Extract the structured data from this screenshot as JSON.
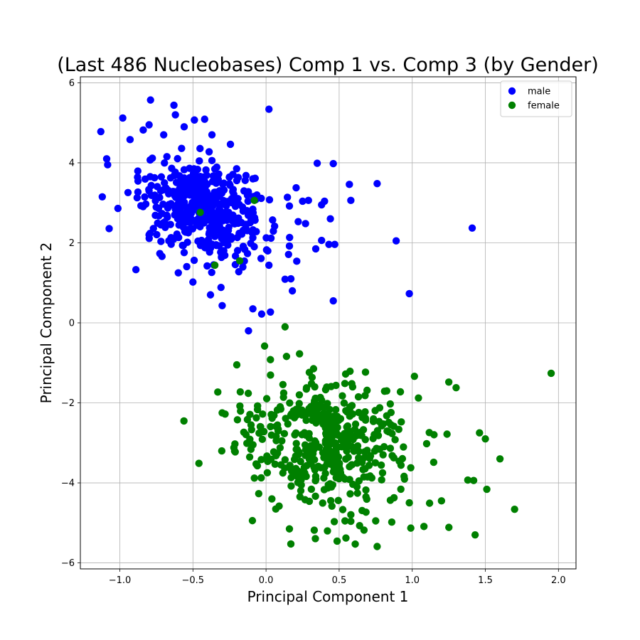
{
  "chart_data": {
    "type": "scatter",
    "title": "(Last 486 Nucleobases) Comp 1 vs. Comp 3 (by Gender)",
    "xlabel": "Principal Component 1",
    "ylabel": "Principal Component 2",
    "xlim": [
      -1.27,
      2.12
    ],
    "ylim": [
      -6.15,
      6.15
    ],
    "xticks": [
      -1.0,
      -0.5,
      0.0,
      0.5,
      1.0,
      1.5,
      2.0
    ],
    "xtick_labels": [
      "−1.0",
      "−0.5",
      "0.0",
      "0.5",
      "1.0",
      "1.5",
      "2.0"
    ],
    "yticks": [
      -6,
      -4,
      -2,
      0,
      2,
      4,
      6
    ],
    "ytick_labels": [
      "−6",
      "−4",
      "−2",
      "0",
      "2",
      "4",
      "6"
    ],
    "grid": true,
    "legend_position": "top-right",
    "series": [
      {
        "name": "male",
        "color": "#0000ff",
        "generated_count": 440,
        "cluster": {
          "center": [
            -0.42,
            2.85
          ],
          "spread": [
            0.22,
            0.62
          ]
        },
        "points": [
          [
            -1.13,
            4.78
          ],
          [
            -0.98,
            5.12
          ],
          [
            -0.79,
            5.57
          ],
          [
            -0.63,
            5.44
          ],
          [
            -0.62,
            5.2
          ],
          [
            -0.42,
            5.09
          ],
          [
            -0.49,
            5.07
          ],
          [
            0.02,
            5.34
          ],
          [
            -1.09,
            4.1
          ],
          [
            -0.93,
            4.58
          ],
          [
            -0.84,
            4.82
          ],
          [
            -0.8,
            4.95
          ],
          [
            -0.7,
            4.7
          ],
          [
            -0.56,
            4.9
          ],
          [
            -0.37,
            4.7
          ],
          [
            0.35,
            3.99
          ],
          [
            0.46,
            3.98
          ],
          [
            0.57,
            3.46
          ],
          [
            0.76,
            3.48
          ],
          [
            0.58,
            3.06
          ],
          [
            0.25,
            3.04
          ],
          [
            0.29,
            3.06
          ],
          [
            0.38,
            2.95
          ],
          [
            0.4,
            3.04
          ],
          [
            0.16,
            2.92
          ],
          [
            0.44,
            2.6
          ],
          [
            0.22,
            2.53
          ],
          [
            0.27,
            2.48
          ],
          [
            0.38,
            2.06
          ],
          [
            0.34,
            1.85
          ],
          [
            0.43,
            1.96
          ],
          [
            0.47,
            1.96
          ],
          [
            0.89,
            2.05
          ],
          [
            1.41,
            2.37
          ],
          [
            0.98,
            0.73
          ],
          [
            0.46,
            0.55
          ],
          [
            -0.12,
            -0.2
          ],
          [
            0.13,
            1.09
          ],
          [
            0.17,
            1.1
          ],
          [
            0.18,
            0.8
          ],
          [
            0.16,
            1.92
          ],
          [
            0.21,
            1.54
          ],
          [
            -1.12,
            3.15
          ],
          [
            -0.89,
            1.33
          ],
          [
            -0.6,
            1.25
          ],
          [
            -0.5,
            1.02
          ],
          [
            -0.38,
            0.7
          ],
          [
            -0.09,
            0.35
          ],
          [
            -0.03,
            0.22
          ],
          [
            0.03,
            0.27
          ],
          [
            -0.3,
            0.43
          ],
          [
            -0.8,
            2.2
          ],
          [
            -0.65,
            2.02
          ]
        ]
      },
      {
        "name": "female",
        "color": "#008000",
        "generated_count": 460,
        "cluster": {
          "center": [
            0.42,
            -2.95
          ],
          "spread": [
            0.3,
            0.78
          ]
        },
        "points": [
          [
            1.95,
            -1.26
          ],
          [
            1.7,
            -4.66
          ],
          [
            1.43,
            -5.3
          ],
          [
            0.76,
            -5.59
          ],
          [
            0.61,
            -5.53
          ],
          [
            0.42,
            -5.2
          ],
          [
            0.16,
            -5.15
          ],
          [
            0.99,
            -5.13
          ],
          [
            1.08,
            -5.09
          ],
          [
            1.6,
            -3.4
          ],
          [
            1.51,
            -4.16
          ],
          [
            1.46,
            -2.75
          ],
          [
            1.5,
            -2.9
          ],
          [
            1.3,
            -1.62
          ],
          [
            1.25,
            -1.48
          ],
          [
            -0.2,
            -1.05
          ],
          [
            0.14,
            -0.84
          ],
          [
            0.03,
            -0.92
          ],
          [
            0.13,
            -0.1
          ],
          [
            -0.01,
            -0.58
          ],
          [
            -0.33,
            -1.73
          ],
          [
            -0.3,
            -2.25
          ],
          [
            -0.28,
            -2.28
          ],
          [
            -0.22,
            -3.12
          ],
          [
            -0.08,
            -3.88
          ],
          [
            -0.05,
            -4.27
          ],
          [
            0.04,
            -4.4
          ],
          [
            0.75,
            -4.95
          ],
          [
            0.54,
            -4.95
          ],
          [
            0.58,
            -4.96
          ],
          [
            0.86,
            -4.98
          ],
          [
            0.64,
            -5.07
          ],
          [
            0.67,
            -5.18
          ],
          [
            1.2,
            -4.45
          ],
          [
            1.42,
            -3.94
          ],
          [
            1.38,
            -3.93
          ],
          [
            -0.45,
            2.76
          ],
          [
            -0.08,
            3.06
          ],
          [
            -0.18,
            1.55
          ],
          [
            -0.35,
            1.44
          ]
        ]
      }
    ]
  }
}
